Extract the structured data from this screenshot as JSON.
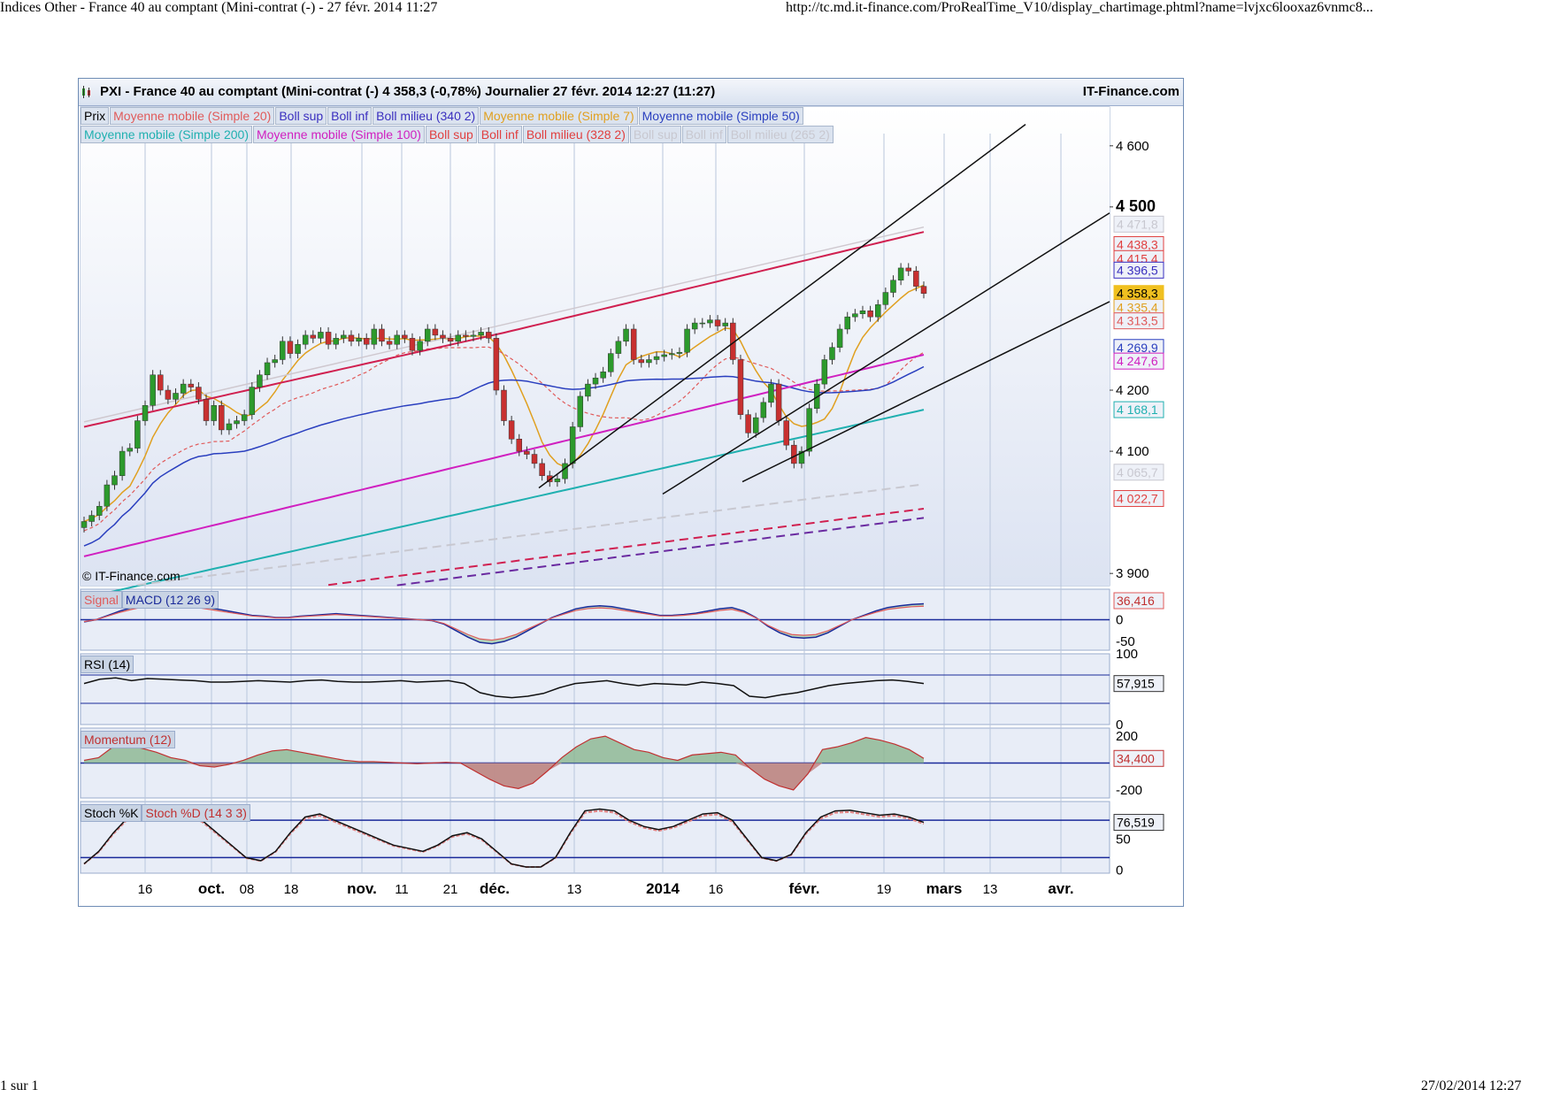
{
  "page": {
    "header_left": "Indices Other - France 40 au comptant (Mini-contrat (-) - 27 févr. 2014 11:27",
    "header_right": "http://tc.md.it-finance.com/ProRealTime_V10/display_chartimage.phtml?name=lvjxc6looxaz6vnmc8...",
    "footer_left": "1 sur 1",
    "footer_right": "27/02/2014 12:27"
  },
  "chart_header": {
    "title": "PXI - France 40 au comptant (Mini-contrat  (-)    4 358,3 (-0,78%)    Journalier  27 févr. 2014 12:27 (11:27)",
    "brand": "IT-Finance.com",
    "copyright": "© IT-Finance.com"
  },
  "legend": {
    "row1": [
      {
        "text": "Prix",
        "color": "#000000"
      },
      {
        "text": "Moyenne mobile (Simple 20)",
        "color": "#e05a5a"
      },
      {
        "text": "Boll sup",
        "color": "#3a2fbf"
      },
      {
        "text": "Boll inf",
        "color": "#3a2fbf"
      },
      {
        "text": "Boll milieu (340 2)",
        "color": "#3a2fbf"
      },
      {
        "text": "Moyenne mobile (Simple 7)",
        "color": "#e0a020"
      },
      {
        "text": "Moyenne mobile (Simple 50)",
        "color": "#2a3fbf"
      }
    ],
    "row2": [
      {
        "text": "Moyenne mobile (Simple 200)",
        "color": "#20b0b0"
      },
      {
        "text": "Moyenne mobile (Simple 100)",
        "color": "#d020c0"
      },
      {
        "text": "Boll sup",
        "color": "#e04040"
      },
      {
        "text": "Boll inf",
        "color": "#e04040"
      },
      {
        "text": "Boll milieu (328 2)",
        "color": "#e04040"
      },
      {
        "text": "Boll sup",
        "color": "#c8c8d0"
      },
      {
        "text": "Boll inf",
        "color": "#c8c8d0"
      },
      {
        "text": "Boll milieu (265 2)",
        "color": "#c8c8d0"
      }
    ]
  },
  "chart_data": [
    {
      "type": "candlestick",
      "title": "PXI - France 40 au comptant",
      "y_ticks": [
        {
          "value": 4600,
          "label": "4 600"
        },
        {
          "value": 4500,
          "label": "4 500"
        },
        {
          "value": 4200,
          "label": "4 200"
        },
        {
          "value": 4100,
          "label": "4 100"
        },
        {
          "value": 3900,
          "label": "3 900"
        }
      ],
      "ylim": [
        3880,
        4620
      ],
      "x_ticks": [
        "16",
        "oct.",
        "08",
        "18",
        "nov.",
        "11",
        "21",
        "déc.",
        "13",
        "2014",
        "16",
        "févr.",
        "19",
        "mars",
        "13",
        "avr."
      ],
      "value_tags": [
        {
          "label": "4 471,8",
          "value": 4471.8,
          "color": "#c8c8d0"
        },
        {
          "label": "4 438,3",
          "value": 4438.3,
          "color": "#e04040"
        },
        {
          "label": "4 415,4",
          "value": 4415.4,
          "color": "#e04040"
        },
        {
          "label": "4 396,5",
          "value": 4396.5,
          "color": "#3a2fbf"
        },
        {
          "label": "4 358,3",
          "value": 4358.3,
          "color": "#f0c020"
        },
        {
          "label": "4 335,4",
          "value": 4335.4,
          "color": "#e0a020"
        },
        {
          "label": "4 313,5",
          "value": 4313.5,
          "color": "#e05a5a"
        },
        {
          "label": "4 269,9",
          "value": 4269.9,
          "color": "#2a3fbf"
        },
        {
          "label": "4 247,6",
          "value": 4247.6,
          "color": "#d020c0"
        },
        {
          "label": "4 168,1",
          "value": 4168.1,
          "color": "#20b0b0"
        },
        {
          "label": "4 065,7",
          "value": 4065.7,
          "color": "#c8c8d0"
        },
        {
          "label": "4 022,7",
          "value": 4022.7,
          "color": "#e04040"
        }
      ],
      "close": [
        3985,
        3995,
        4010,
        4045,
        4060,
        4100,
        4105,
        4150,
        4175,
        4225,
        4200,
        4185,
        4195,
        4210,
        4205,
        4185,
        4150,
        4175,
        4135,
        4145,
        4150,
        4160,
        4205,
        4225,
        4245,
        4250,
        4280,
        4260,
        4275,
        4290,
        4285,
        4295,
        4275,
        4285,
        4290,
        4280,
        4285,
        4275,
        4300,
        4280,
        4275,
        4290,
        4285,
        4265,
        4280,
        4300,
        4290,
        4285,
        4280,
        4290,
        4288,
        4290,
        4295,
        4285,
        4200,
        4150,
        4120,
        4100,
        4095,
        4080,
        4060,
        4050,
        4055,
        4080,
        4140,
        4190,
        4210,
        4220,
        4230,
        4260,
        4280,
        4300,
        4250,
        4245,
        4250,
        4255,
        4258,
        4260,
        4262,
        4300,
        4310,
        4310,
        4315,
        4305,
        4310,
        4250,
        4160,
        4130,
        4155,
        4180,
        4210,
        4150,
        4110,
        4080,
        4100,
        4170,
        4210,
        4250,
        4270,
        4300,
        4320,
        4325,
        4330,
        4320,
        4340,
        4360,
        4380,
        4400,
        4395,
        4370,
        4358.3
      ]
    },
    {
      "type": "line",
      "title": "MACD (12 26 9)",
      "series_labels": [
        "Signal",
        "MACD (12 26 9)"
      ],
      "y_ticks": [
        {
          "value": 0,
          "label": "0"
        },
        {
          "value": -50,
          "label": "-50"
        }
      ],
      "ylim": [
        -70,
        70
      ],
      "last_value": "36,416",
      "values": [
        -5,
        0,
        10,
        20,
        28,
        35,
        38,
        40,
        38,
        35,
        30,
        25,
        20,
        15,
        10,
        8,
        5,
        5,
        8,
        10,
        12,
        14,
        12,
        10,
        8,
        6,
        4,
        2,
        0,
        -2,
        -10,
        -25,
        -40,
        -52,
        -55,
        -50,
        -40,
        -25,
        -10,
        5,
        15,
        25,
        30,
        32,
        30,
        25,
        20,
        15,
        10,
        10,
        12,
        15,
        20,
        25,
        28,
        20,
        5,
        -15,
        -30,
        -40,
        -42,
        -40,
        -30,
        -15,
        0,
        10,
        20,
        28,
        32,
        35,
        36.416
      ]
    },
    {
      "type": "line",
      "title": "RSI (14)",
      "y_ticks": [
        {
          "value": 100,
          "label": "100"
        },
        {
          "value": 0,
          "label": "0"
        }
      ],
      "ylim": [
        0,
        100
      ],
      "last_value": "57,915",
      "values": [
        58,
        64,
        66,
        62,
        65,
        64,
        63,
        62,
        60,
        60,
        61,
        62,
        61,
        60,
        62,
        63,
        61,
        60,
        60,
        61,
        62,
        60,
        61,
        62,
        58,
        45,
        40,
        38,
        40,
        44,
        52,
        58,
        60,
        62,
        58,
        55,
        58,
        57,
        56,
        60,
        58,
        55,
        40,
        38,
        42,
        45,
        50,
        55,
        58,
        60,
        62,
        63,
        61,
        57.915
      ]
    },
    {
      "type": "area",
      "title": "Momentum (12)",
      "y_ticks": [
        {
          "value": 200,
          "label": "200"
        },
        {
          "value": -200,
          "label": "-200"
        }
      ],
      "ylim": [
        -260,
        260
      ],
      "last_value": "34,400",
      "values": [
        20,
        40,
        120,
        130,
        110,
        80,
        40,
        20,
        -20,
        -30,
        -10,
        20,
        60,
        90,
        100,
        80,
        60,
        40,
        20,
        10,
        10,
        5,
        0,
        -5,
        0,
        5,
        0,
        -60,
        -120,
        -170,
        -190,
        -150,
        -60,
        40,
        120,
        180,
        200,
        150,
        100,
        80,
        40,
        20,
        60,
        70,
        80,
        60,
        -40,
        -120,
        -170,
        -200,
        -80,
        100,
        120,
        150,
        190,
        170,
        140,
        100,
        34.4
      ]
    },
    {
      "type": "line",
      "title": "Stoch %K",
      "series_labels": [
        "Stoch %K",
        "Stoch %D (14 3 3)"
      ],
      "y_ticks": [
        {
          "value": 50,
          "label": "50"
        },
        {
          "value": 0,
          "label": "0"
        }
      ],
      "ylim": [
        -5,
        110
      ],
      "last_value": "76,519",
      "values": [
        10,
        30,
        60,
        85,
        95,
        95,
        92,
        88,
        80,
        60,
        40,
        20,
        15,
        30,
        60,
        85,
        90,
        80,
        70,
        60,
        50,
        40,
        35,
        30,
        40,
        55,
        60,
        50,
        30,
        10,
        5,
        5,
        20,
        60,
        95,
        98,
        95,
        80,
        70,
        65,
        70,
        80,
        90,
        92,
        80,
        50,
        20,
        15,
        25,
        60,
        85,
        95,
        96,
        92,
        88,
        90,
        85,
        76.519
      ]
    }
  ]
}
